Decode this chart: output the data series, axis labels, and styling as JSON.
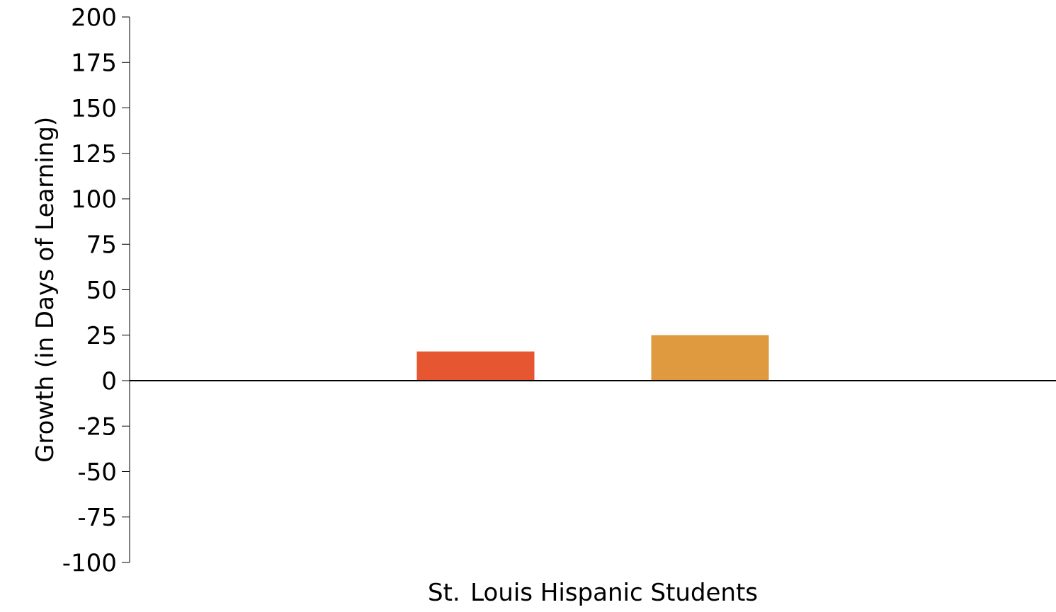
{
  "chart_data": {
    "type": "bar",
    "ylabel": "Growth (in Days of Learning)",
    "categories": [
      "St. Louis Hispanic Students"
    ],
    "series": [
      {
        "color": "#e65731",
        "values": [
          16
        ]
      },
      {
        "color": "#df9a3f",
        "values": [
          25
        ]
      }
    ],
    "ylim": [
      -100,
      200
    ],
    "yticks": [
      -100,
      -75,
      -50,
      -25,
      0,
      25,
      50,
      75,
      100,
      125,
      150,
      175,
      200
    ]
  }
}
